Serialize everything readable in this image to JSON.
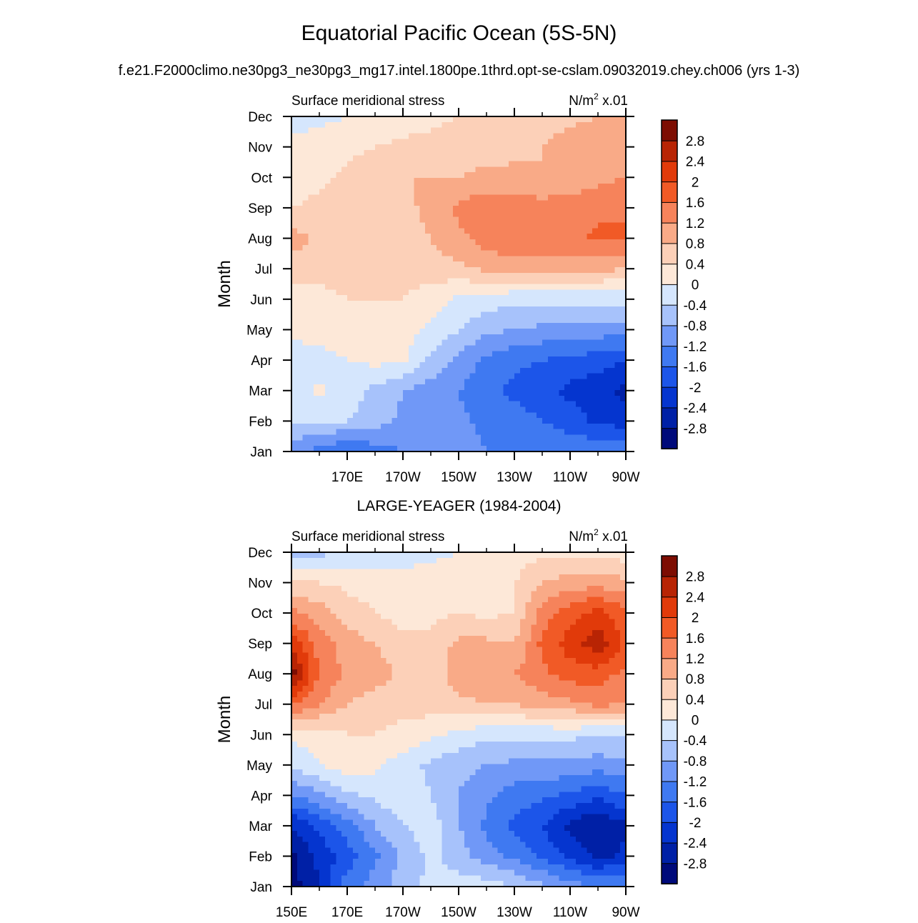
{
  "figure": {
    "title": "Equatorial Pacific Ocean (5S-5N)",
    "subtitle": "f.e21.F2000climo.ne30pg3_ne30pg3_mg17.intel.1800pe.1thrd.opt-se-cslam.09032019.chey.ch006 (yrs 1-3)",
    "panel2_title": "LARGE-YEAGER (1984-2004)"
  },
  "chart_data": [
    {
      "type": "heatmap",
      "title": "f.e21.F2000climo.ne30pg3_ne30pg3_mg17.intel.1800pe.1thrd.opt-se-cslam.09032019.chey.ch006 (yrs 1-3)",
      "left_label": "Surface meridional stress",
      "units_main": "N/m",
      "units_sup": "2",
      "units_scale": "x.01",
      "ylabel": "Month",
      "xlabel": "",
      "x_range": [
        150,
        270
      ],
      "x_ticks": [
        170,
        190,
        210,
        230,
        250,
        270
      ],
      "x_tick_labels": [
        "170E",
        "170W",
        "150W",
        "130W",
        "110W",
        "90W"
      ],
      "y_tick_labels": [
        "Jan",
        "Feb",
        "Mar",
        "Apr",
        "May",
        "Jun",
        "Jul",
        "Aug",
        "Sep",
        "Oct",
        "Nov",
        "Dec"
      ],
      "x": [
        150,
        160,
        170,
        180,
        190,
        200,
        210,
        220,
        230,
        240,
        250,
        260,
        270
      ],
      "months": [
        "Jan",
        "Feb",
        "Mar",
        "Apr",
        "May",
        "Jun",
        "Jul",
        "Aug",
        "Sep",
        "Oct",
        "Nov",
        "Dec"
      ],
      "z": [
        [
          -1.0,
          -1.4,
          -1.6,
          -1.4,
          -1.2,
          -1.0,
          -1.0,
          -1.2,
          -1.2,
          -1.3,
          -1.3,
          -1.3,
          -1.2
        ],
        [
          -0.4,
          -0.4,
          -0.4,
          -0.6,
          -0.9,
          -1.0,
          -1.1,
          -1.3,
          -1.4,
          -1.6,
          -1.8,
          -2.1,
          -2.2
        ],
        [
          -0.2,
          0.1,
          -0.2,
          -0.5,
          -0.8,
          -1.0,
          -1.2,
          -1.5,
          -1.7,
          -1.9,
          -2.1,
          -2.3,
          -2.5
        ],
        [
          -0.2,
          -0.2,
          0.0,
          0.1,
          0.1,
          -0.5,
          -0.9,
          -1.3,
          -1.5,
          -1.6,
          -1.7,
          -1.8,
          -2.0
        ],
        [
          0.1,
          0.2,
          0.3,
          0.3,
          0.2,
          -0.1,
          -0.4,
          -0.7,
          -0.8,
          -0.9,
          -0.9,
          -1.0,
          -1.0
        ],
        [
          0.2,
          0.3,
          0.4,
          0.4,
          0.4,
          0.2,
          -0.1,
          -0.2,
          -0.3,
          -0.3,
          -0.3,
          -0.3,
          -0.3
        ],
        [
          0.6,
          0.5,
          0.6,
          0.6,
          0.6,
          0.6,
          0.7,
          0.9,
          1.0,
          0.9,
          0.9,
          0.9,
          0.8
        ],
        [
          1.0,
          0.7,
          0.6,
          0.6,
          0.6,
          0.8,
          1.1,
          1.4,
          1.5,
          1.5,
          1.5,
          1.7,
          1.6
        ],
        [
          0.4,
          0.5,
          0.6,
          0.6,
          0.7,
          0.9,
          1.3,
          1.5,
          1.4,
          1.4,
          1.4,
          1.5,
          1.6
        ],
        [
          0.2,
          0.3,
          0.5,
          0.6,
          0.8,
          0.8,
          0.8,
          0.9,
          0.9,
          0.8,
          0.9,
          1.1,
          1.2
        ],
        [
          0.1,
          0.2,
          0.3,
          0.4,
          0.5,
          0.5,
          0.6,
          0.6,
          0.7,
          0.8,
          1.0,
          1.1,
          1.1
        ],
        [
          -0.2,
          -0.1,
          0.0,
          0.1,
          0.2,
          0.3,
          0.4,
          0.4,
          0.5,
          0.6,
          0.7,
          0.8,
          0.8
        ]
      ]
    },
    {
      "type": "heatmap",
      "title": "LARGE-YEAGER (1984-2004)",
      "left_label": "Surface meridional stress",
      "units_main": "N/m",
      "units_sup": "2",
      "units_scale": "x.01",
      "ylabel": "Month",
      "xlabel": "",
      "x_range": [
        150,
        270
      ],
      "x_ticks": [
        150,
        170,
        190,
        210,
        230,
        250,
        270
      ],
      "x_tick_labels": [
        "150E",
        "170E",
        "170W",
        "150W",
        "130W",
        "110W",
        "90W"
      ],
      "y_tick_labels": [
        "Jan",
        "Feb",
        "Mar",
        "Apr",
        "May",
        "Jun",
        "Jul",
        "Aug",
        "Sep",
        "Oct",
        "Nov",
        "Dec"
      ],
      "x": [
        150,
        160,
        170,
        180,
        190,
        200,
        210,
        220,
        230,
        240,
        250,
        260,
        270
      ],
      "months": [
        "Jan",
        "Feb",
        "Mar",
        "Apr",
        "May",
        "Jun",
        "Jul",
        "Aug",
        "Sep",
        "Oct",
        "Nov",
        "Dec"
      ],
      "z": [
        [
          -3.0,
          -2.4,
          -1.4,
          -1.0,
          -0.6,
          -0.3,
          -0.2,
          -0.2,
          -0.4,
          -0.7,
          -1.0,
          -1.2,
          -1.2
        ],
        [
          -2.9,
          -2.3,
          -1.8,
          -1.3,
          -0.7,
          -0.3,
          -0.6,
          -1.0,
          -1.3,
          -1.7,
          -2.1,
          -2.5,
          -2.3
        ],
        [
          -2.4,
          -1.9,
          -1.4,
          -0.8,
          -0.4,
          -0.2,
          -0.8,
          -1.3,
          -1.7,
          -2.0,
          -2.5,
          -2.8,
          -2.5
        ],
        [
          -1.2,
          -0.9,
          -0.5,
          -0.3,
          -0.1,
          -0.4,
          -0.8,
          -1.1,
          -1.4,
          -1.5,
          -1.7,
          -1.9,
          -1.6
        ],
        [
          -0.3,
          0.0,
          0.2,
          0.1,
          -0.2,
          -0.5,
          -0.7,
          -0.8,
          -0.9,
          -0.9,
          -0.9,
          -1.0,
          -0.9
        ],
        [
          0.1,
          0.2,
          0.4,
          0.4,
          0.3,
          0.1,
          -0.1,
          -0.3,
          -0.3,
          -0.3,
          -0.3,
          -0.4,
          -0.4
        ],
        [
          1.7,
          1.2,
          0.8,
          0.6,
          0.5,
          0.6,
          0.7,
          0.8,
          0.8,
          1.0,
          1.1,
          1.3,
          1.2
        ],
        [
          3.0,
          1.6,
          1.1,
          1.0,
          0.7,
          0.6,
          1.0,
          1.2,
          1.2,
          1.5,
          1.8,
          1.8,
          1.5
        ],
        [
          2.3,
          1.4,
          1.0,
          0.8,
          0.5,
          0.5,
          0.9,
          0.9,
          0.8,
          1.7,
          2.2,
          2.7,
          1.9
        ],
        [
          1.3,
          1.0,
          0.6,
          0.4,
          0.2,
          0.3,
          0.4,
          0.3,
          0.4,
          1.4,
          1.8,
          2.2,
          1.7
        ],
        [
          0.4,
          0.4,
          0.3,
          0.2,
          0.2,
          0.2,
          0.3,
          0.3,
          0.4,
          0.8,
          1.0,
          1.0,
          0.9
        ],
        [
          -0.7,
          -0.5,
          -0.3,
          -0.3,
          -0.2,
          -0.1,
          0.0,
          0.1,
          0.2,
          0.3,
          0.3,
          0.2,
          0.2
        ]
      ]
    }
  ],
  "colorbar": {
    "labels": [
      "2.8",
      "2.4",
      "2",
      "1.6",
      "1.2",
      "0.8",
      "0.4",
      "0",
      "-0.4",
      "-0.8",
      "-1.2",
      "-1.6",
      "-2",
      "-2.4",
      "-2.8"
    ],
    "levels": [
      -2.8,
      -2.4,
      -2.0,
      -1.6,
      -1.2,
      -0.8,
      -0.4,
      0.0,
      0.4,
      0.8,
      1.2,
      1.6,
      2.0,
      2.4,
      2.8
    ],
    "colors": [
      "#000a7a",
      "#0020a6",
      "#0535cf",
      "#1c55e9",
      "#3f79f1",
      "#7098f7",
      "#a7c2fb",
      "#d5e6fd",
      "#fde8d8",
      "#fcd0b8",
      "#f9aa87",
      "#f6835b",
      "#f15a26",
      "#e13a0a",
      "#b82404",
      "#7d0d02"
    ]
  }
}
